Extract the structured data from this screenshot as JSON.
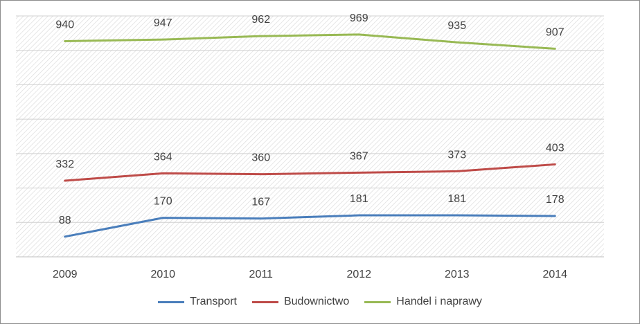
{
  "chart_data": {
    "type": "line",
    "title": "",
    "xlabel": "",
    "ylabel": "",
    "categories": [
      "2009",
      "2010",
      "2011",
      "2012",
      "2013",
      "2014"
    ],
    "grid": true,
    "legend_position": "bottom",
    "series": [
      {
        "name": "Transport",
        "color": "#4a7ebb",
        "values": [
          88,
          170,
          167,
          181,
          181,
          178
        ]
      },
      {
        "name": "Budownictwo",
        "color": "#be4b48",
        "values": [
          332,
          364,
          360,
          367,
          373,
          403
        ]
      },
      {
        "name": "Handel i naprawy",
        "color": "#98b954",
        "values": [
          940,
          947,
          962,
          969,
          935,
          907
        ]
      }
    ]
  }
}
